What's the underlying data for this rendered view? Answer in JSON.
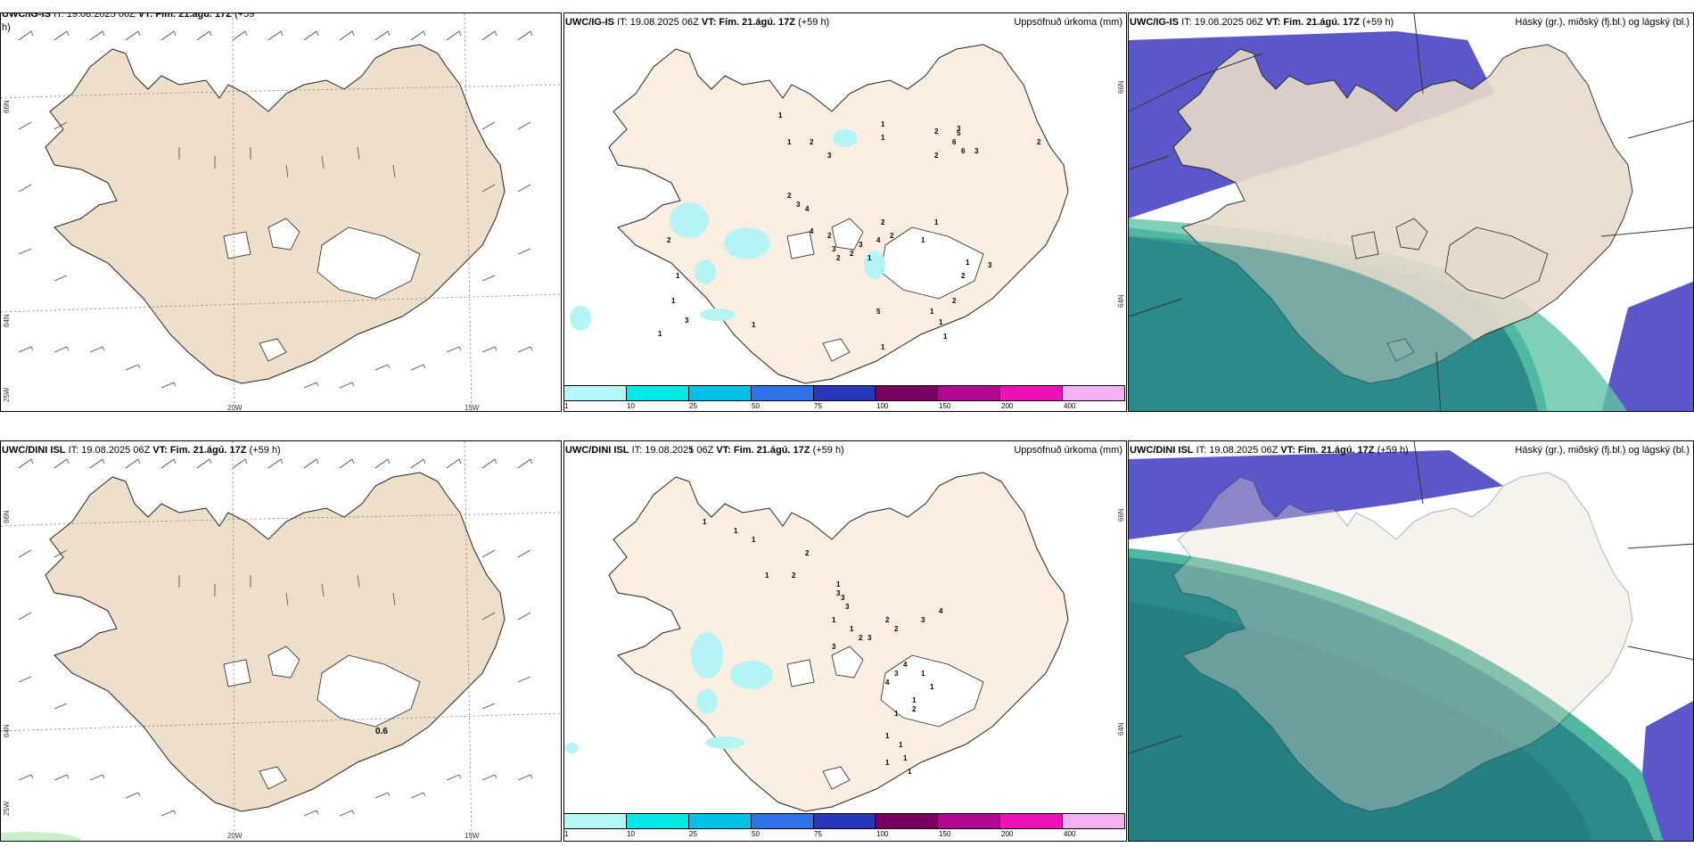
{
  "rows": [
    {
      "model": "UWC/IG-IS",
      "panels": {
        "wind": {
          "model": "UWC/IG-IS",
          "it": "IT: 19.08.2025 06Z",
          "vt_label": "VT: Fim. 21.ágú. 17Z",
          "lead": "(+59",
          "lead_cont": "h)"
        },
        "precip": {
          "model": "UWC/IG-IS",
          "it": "IT: 19.08.2025 06Z",
          "vt_label": "VT: Fim. 21.ágú. 17Z",
          "lead": "(+59 h)",
          "field": "Uppsöfnuð úrkoma (mm)"
        },
        "cloud": {
          "model": "UWC/IG-IS",
          "it": "IT: 19.08.2025 06Z",
          "vt_label": "VT: Fim. 21.ágú. 17Z",
          "lead": "(+59 h)",
          "field": "Háský (gr.), miðský (fj.bl.) og lágský (bl.)"
        }
      },
      "precip_values": [
        "1",
        "1",
        "1",
        "2",
        "3",
        "1",
        "1",
        "2",
        "2",
        "3",
        "5",
        "6",
        "6",
        "3",
        "2",
        "2",
        "3",
        "4",
        "4",
        "2",
        "3",
        "2",
        "2",
        "3",
        "1",
        "4",
        "2",
        "2",
        "1",
        "1",
        "1",
        "2",
        "3",
        "2",
        "1",
        "1",
        "1",
        "5",
        "1",
        "1",
        "3",
        "2",
        "1",
        "1"
      ]
    },
    {
      "model": "UWC/DINI ISL",
      "panels": {
        "wind": {
          "model": "UWC/DINI ISL",
          "it": "IT: 19.08.2025 06Z",
          "vt_label": "VT: Fim. 21.ágú. 17Z",
          "lead": "(+59 h)",
          "wind_value": "0.6"
        },
        "precip": {
          "model": "UWC/DINI ISL",
          "it": "IT: 19.08.2025 06Z",
          "vt_label": "VT: Fim. 21.ágú. 17Z",
          "lead": "(+59 h)",
          "field": "Uppsöfnuð úrkoma (mm)"
        },
        "cloud": {
          "model": "UWC/DINI ISL",
          "it": "IT: 19.08.2025 06Z",
          "vt_label": "VT: Fim. 21.ágú. 17Z",
          "lead": "(+59 h)",
          "field": "Háský (gr.), miðský (fj.bl.) og lágský (bl.)"
        }
      },
      "precip_values": [
        "1",
        "1",
        "1",
        "1",
        "1",
        "2",
        "2",
        "1",
        "3",
        "3",
        "3",
        "1",
        "1",
        "2",
        "2",
        "2",
        "3",
        "4",
        "4",
        "3",
        "4",
        "3",
        "3",
        "1",
        "1",
        "1",
        "2",
        "1",
        "1",
        "1",
        "1",
        "1",
        "1"
      ]
    }
  ],
  "axis": {
    "lat_66": "66N",
    "lat_64": "64N",
    "lat_25w": "25W",
    "lon_20w": "20W",
    "lon_15w": "15W"
  },
  "colorbar": {
    "labels": [
      "1",
      "10",
      "25",
      "50",
      "75",
      "100",
      "150",
      "200",
      "400"
    ],
    "colors": [
      "#b4f7f7",
      "#00e8e8",
      "#00c0e8",
      "#3070e8",
      "#2838b8",
      "#780060",
      "#b00890",
      "#f010b8",
      "#f4b0f0"
    ]
  },
  "colors": {
    "land": "#eedfcb",
    "land_light": "#fcefe2",
    "ice": "#ffffff",
    "high_cloud": "#5a58c8",
    "mid_cloud": "#2d8a8a",
    "low_cloud": "#4fb8a0",
    "precip_light": "#b4f4f4"
  }
}
